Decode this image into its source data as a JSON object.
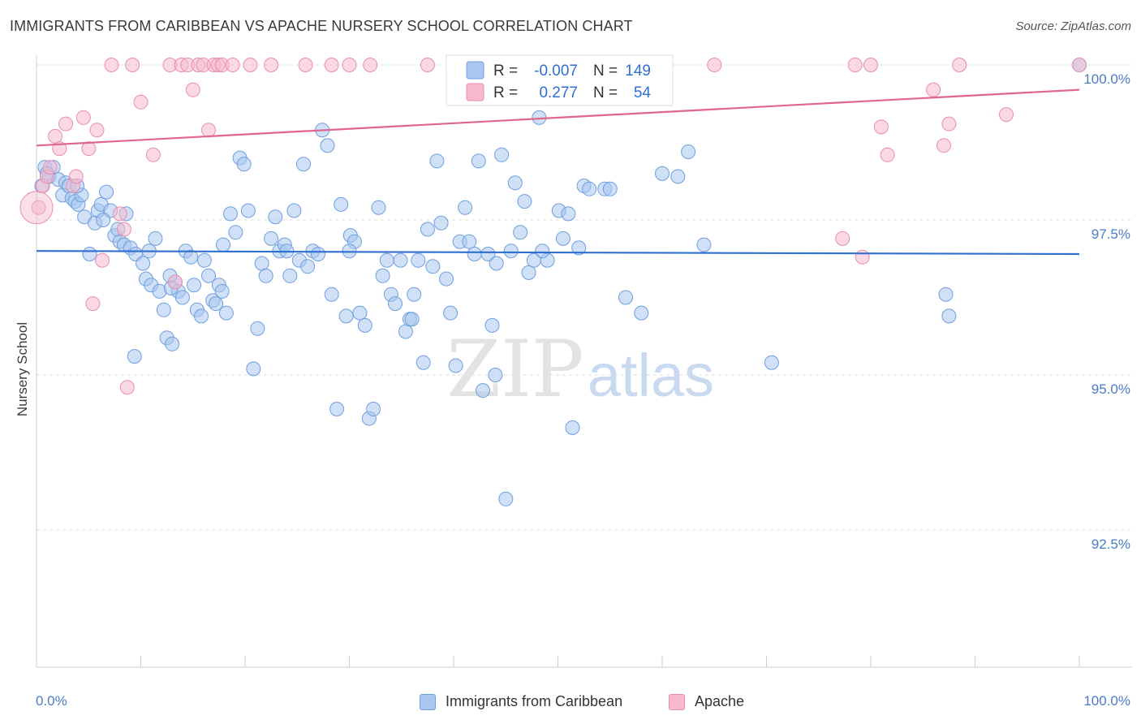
{
  "header": {
    "title": "IMMIGRANTS FROM CARIBBEAN VS APACHE NURSERY SCHOOL CORRELATION CHART",
    "source": "Source: ZipAtlas.com"
  },
  "watermark": {
    "zip": "ZIP",
    "atlas": "atlas"
  },
  "colors": {
    "blue_fill": "#a8c6f0",
    "blue_stroke": "#6f9fdd",
    "blue_line": "#2f6fcf",
    "pink_fill": "#f6b9cd",
    "pink_stroke": "#ea8db0",
    "pink_line": "#e0668f",
    "tick_text": "#4a7cc7"
  },
  "legend_top": {
    "rows": [
      {
        "r_label": "R =",
        "r_value": "-0.007",
        "n_label": "N =",
        "n_value": "149"
      },
      {
        "r_label": "R =",
        "r_value": "0.277",
        "n_label": "N =",
        "n_value": "54"
      }
    ]
  },
  "legend_bottom": {
    "items": [
      {
        "label": "Immigrants from Caribbean"
      },
      {
        "label": "Apache"
      }
    ]
  },
  "chart_data": {
    "type": "scatter",
    "title": "IMMIGRANTS FROM CARIBBEAN VS APACHE NURSERY SCHOOL CORRELATION CHART",
    "xlabel": "",
    "ylabel": "Nursery School",
    "xlim": [
      0,
      100
    ],
    "ylim": [
      90.1,
      100.4
    ],
    "x_tick_labels": [
      "0.0%",
      "100.0%"
    ],
    "y_ticks": [
      92.5,
      95.0,
      97.5,
      100.0
    ],
    "y_tick_labels": [
      "92.5%",
      "95.0%",
      "97.5%",
      "100.0%"
    ],
    "grid": "horizontal dashed",
    "legend": "top-center",
    "series": [
      {
        "name": "Immigrants from Caribbean",
        "R": -0.007,
        "N": 149,
        "trend": {
          "y_at_0": 97.0,
          "y_at_100": 96.95
        },
        "points": [
          [
            0.5,
            98.05
          ],
          [
            0.8,
            98.35
          ],
          [
            1.2,
            98.2
          ],
          [
            1.6,
            98.35
          ],
          [
            2.1,
            98.15
          ],
          [
            2.5,
            97.9
          ],
          [
            2.8,
            98.1
          ],
          [
            3.1,
            98.05
          ],
          [
            3.4,
            97.85
          ],
          [
            3.7,
            97.8
          ],
          [
            4.0,
            97.75
          ],
          [
            4.3,
            97.9
          ],
          [
            4.6,
            97.55
          ],
          [
            5.1,
            96.95
          ],
          [
            5.6,
            97.45
          ],
          [
            5.9,
            97.65
          ],
          [
            6.2,
            97.75
          ],
          [
            6.7,
            97.95
          ],
          [
            7.1,
            97.65
          ],
          [
            7.5,
            97.25
          ],
          [
            7.8,
            97.35
          ],
          [
            8.0,
            97.15
          ],
          [
            8.4,
            97.1
          ],
          [
            9.0,
            97.05
          ],
          [
            9.5,
            96.95
          ],
          [
            10.2,
            96.8
          ],
          [
            10.5,
            96.55
          ],
          [
            11.0,
            96.45
          ],
          [
            11.4,
            97.2
          ],
          [
            11.8,
            96.35
          ],
          [
            12.2,
            96.05
          ],
          [
            12.5,
            95.6
          ],
          [
            13.0,
            95.5
          ],
          [
            13.3,
            96.5
          ],
          [
            13.6,
            96.35
          ],
          [
            14.0,
            96.25
          ],
          [
            14.3,
            97.0
          ],
          [
            14.8,
            96.9
          ],
          [
            15.1,
            96.45
          ],
          [
            15.4,
            96.05
          ],
          [
            15.8,
            95.95
          ],
          [
            16.1,
            96.85
          ],
          [
            16.5,
            96.6
          ],
          [
            16.9,
            96.2
          ],
          [
            17.2,
            96.15
          ],
          [
            17.5,
            96.45
          ],
          [
            17.8,
            96.35
          ],
          [
            18.2,
            96.0
          ],
          [
            18.6,
            97.6
          ],
          [
            19.1,
            97.3
          ],
          [
            19.5,
            98.5
          ],
          [
            19.9,
            98.4
          ],
          [
            20.3,
            97.65
          ],
          [
            20.8,
            95.1
          ],
          [
            21.2,
            95.75
          ],
          [
            21.6,
            96.8
          ],
          [
            22.0,
            96.6
          ],
          [
            22.5,
            97.2
          ],
          [
            22.9,
            97.55
          ],
          [
            23.3,
            97.0
          ],
          [
            23.8,
            97.1
          ],
          [
            24.3,
            96.6
          ],
          [
            24.7,
            97.65
          ],
          [
            25.2,
            96.85
          ],
          [
            25.6,
            98.4
          ],
          [
            26.0,
            96.75
          ],
          [
            26.5,
            97.0
          ],
          [
            27.0,
            96.95
          ],
          [
            27.4,
            98.95
          ],
          [
            27.9,
            98.7
          ],
          [
            28.3,
            96.3
          ],
          [
            28.8,
            94.45
          ],
          [
            29.2,
            97.75
          ],
          [
            29.7,
            95.95
          ],
          [
            30.1,
            97.25
          ],
          [
            30.5,
            97.15
          ],
          [
            31.0,
            96.0
          ],
          [
            31.5,
            95.8
          ],
          [
            31.9,
            94.3
          ],
          [
            32.3,
            94.45
          ],
          [
            32.8,
            97.7
          ],
          [
            33.2,
            96.6
          ],
          [
            33.6,
            96.85
          ],
          [
            34.0,
            96.3
          ],
          [
            34.4,
            96.15
          ],
          [
            34.9,
            96.85
          ],
          [
            35.4,
            95.7
          ],
          [
            35.8,
            95.9
          ],
          [
            36.2,
            96.3
          ],
          [
            36.6,
            96.85
          ],
          [
            37.1,
            95.2
          ],
          [
            37.5,
            97.35
          ],
          [
            38.0,
            96.75
          ],
          [
            38.4,
            98.45
          ],
          [
            38.8,
            97.45
          ],
          [
            39.3,
            96.55
          ],
          [
            39.7,
            96.0
          ],
          [
            40.2,
            95.15
          ],
          [
            40.6,
            97.15
          ],
          [
            41.1,
            97.7
          ],
          [
            41.5,
            97.15
          ],
          [
            42.0,
            96.95
          ],
          [
            42.4,
            98.45
          ],
          [
            42.8,
            94.75
          ],
          [
            43.3,
            96.95
          ],
          [
            43.7,
            95.8
          ],
          [
            44.1,
            96.8
          ],
          [
            44.6,
            98.55
          ],
          [
            45.0,
            93.0
          ],
          [
            45.5,
            97.0
          ],
          [
            45.9,
            98.1
          ],
          [
            46.4,
            97.3
          ],
          [
            46.8,
            97.8
          ],
          [
            47.2,
            96.65
          ],
          [
            47.7,
            96.85
          ],
          [
            48.2,
            99.15
          ],
          [
            49.0,
            96.85
          ],
          [
            50.1,
            97.65
          ],
          [
            50.5,
            97.2
          ],
          [
            51.0,
            97.6
          ],
          [
            51.4,
            94.15
          ],
          [
            52.0,
            97.05
          ],
          [
            52.5,
            98.05
          ],
          [
            53.0,
            98.0
          ],
          [
            54.5,
            98.0
          ],
          [
            56.5,
            96.25
          ],
          [
            58.0,
            96.0
          ],
          [
            60.0,
            98.25
          ],
          [
            61.5,
            98.2
          ],
          [
            62.5,
            98.6
          ],
          [
            64.0,
            97.1
          ],
          [
            70.5,
            95.2
          ],
          [
            87.2,
            96.3
          ],
          [
            87.5,
            95.95
          ],
          [
            100.0,
            100.0
          ],
          [
            1.0,
            98.25
          ],
          [
            3.9,
            98.05
          ],
          [
            8.6,
            97.6
          ],
          [
            10.8,
            97.0
          ],
          [
            9.4,
            95.3
          ],
          [
            6.4,
            97.5
          ],
          [
            12.8,
            96.6
          ],
          [
            17.9,
            97.1
          ],
          [
            24.0,
            97.0
          ],
          [
            30.0,
            97.0
          ],
          [
            36.0,
            95.9
          ],
          [
            44.0,
            95.0
          ],
          [
            48.5,
            97.0
          ],
          [
            55.0,
            98.0
          ],
          [
            12.9,
            96.4
          ]
        ]
      },
      {
        "name": "Apache",
        "R": 0.277,
        "N": 54,
        "trend": {
          "y_at_0": 98.7,
          "y_at_100": 99.6
        },
        "points": [
          [
            0.2,
            97.7
          ],
          [
            0.6,
            98.05
          ],
          [
            1.0,
            98.2
          ],
          [
            1.3,
            98.35
          ],
          [
            1.8,
            98.85
          ],
          [
            2.2,
            98.65
          ],
          [
            2.8,
            99.05
          ],
          [
            3.5,
            98.05
          ],
          [
            3.8,
            98.2
          ],
          [
            4.5,
            99.15
          ],
          [
            5.0,
            98.65
          ],
          [
            5.8,
            98.95
          ],
          [
            6.3,
            96.85
          ],
          [
            5.4,
            96.15
          ],
          [
            7.2,
            100.0
          ],
          [
            8.0,
            97.6
          ],
          [
            8.4,
            97.35
          ],
          [
            8.7,
            94.8
          ],
          [
            9.2,
            100.0
          ],
          [
            10.0,
            99.4
          ],
          [
            11.2,
            98.55
          ],
          [
            12.8,
            100.0
          ],
          [
            13.3,
            96.5
          ],
          [
            13.9,
            100.0
          ],
          [
            14.5,
            100.0
          ],
          [
            15.0,
            99.6
          ],
          [
            15.5,
            100.0
          ],
          [
            16.0,
            100.0
          ],
          [
            16.5,
            98.95
          ],
          [
            17.0,
            100.0
          ],
          [
            17.4,
            100.0
          ],
          [
            17.8,
            100.0
          ],
          [
            18.8,
            100.0
          ],
          [
            20.5,
            100.0
          ],
          [
            22.5,
            100.0
          ],
          [
            25.8,
            100.0
          ],
          [
            28.3,
            100.0
          ],
          [
            30.0,
            100.0
          ],
          [
            32.0,
            100.0
          ],
          [
            37.5,
            100.0
          ],
          [
            45.0,
            100.0
          ],
          [
            65.0,
            100.0
          ],
          [
            77.3,
            97.2
          ],
          [
            78.5,
            100.0
          ],
          [
            79.2,
            96.9
          ],
          [
            80.0,
            100.0
          ],
          [
            81.0,
            99.0
          ],
          [
            81.6,
            98.55
          ],
          [
            86.0,
            99.6
          ],
          [
            87.0,
            98.7
          ],
          [
            87.5,
            99.05
          ],
          [
            88.5,
            100.0
          ],
          [
            93.0,
            99.2
          ],
          [
            100.0,
            100.0
          ]
        ]
      }
    ]
  }
}
